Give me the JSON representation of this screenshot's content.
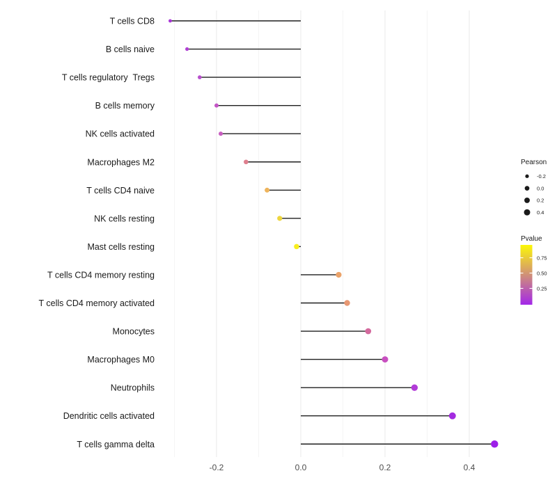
{
  "chart_data": {
    "type": "scatter",
    "subtype": "lollipop",
    "title": "",
    "xlabel": "",
    "ylabel": "",
    "xlim": [
      -0.332,
      0.474
    ],
    "x_major_ticks": [
      -0.2,
      0.0,
      0.2,
      0.4
    ],
    "x_major_tick_labels": [
      "-0.2",
      "0.0",
      "0.2",
      "0.4"
    ],
    "x_minor_ticks": [
      -0.3,
      -0.1,
      0.1,
      0.3
    ],
    "baseline_value": 0,
    "grid": true,
    "categories": [
      "T cells CD8",
      "B cells naive",
      "T cells regulatory  Tregs",
      "B cells memory",
      "NK cells activated",
      "Macrophages M2",
      "T cells CD4 naive",
      "NK cells resting",
      "Mast cells resting",
      "T cells CD4 memory resting",
      "T cells CD4 memory activated",
      "Monocytes",
      "Macrophages M0",
      "Neutrophils",
      "Dendritic cells activated",
      "T cells gamma delta"
    ],
    "points": [
      {
        "label": "T cells CD8",
        "pearson": -0.31,
        "dot_color": "#a935d8"
      },
      {
        "label": "B cells naive",
        "pearson": -0.27,
        "dot_color": "#b040d4"
      },
      {
        "label": "T cells regulatory  Tregs",
        "pearson": -0.24,
        "dot_color": "#b84ecd"
      },
      {
        "label": "B cells memory",
        "pearson": -0.2,
        "dot_color": "#c355c5"
      },
      {
        "label": "NK cells activated",
        "pearson": -0.19,
        "dot_color": "#c75ec0"
      },
      {
        "label": "Macrophages M2",
        "pearson": -0.13,
        "dot_color": "#df7f8e"
      },
      {
        "label": "T cells CD4 naive",
        "pearson": -0.08,
        "dot_color": "#eeb45c"
      },
      {
        "label": "NK cells resting",
        "pearson": -0.05,
        "dot_color": "#eed63e"
      },
      {
        "label": "Mast cells resting",
        "pearson": -0.01,
        "dot_color": "#f8ee1f"
      },
      {
        "label": "T cells CD4 memory resting",
        "pearson": 0.09,
        "dot_color": "#eba36a"
      },
      {
        "label": "T cells CD4 memory activated",
        "pearson": 0.11,
        "dot_color": "#e89873"
      },
      {
        "label": "Monocytes",
        "pearson": 0.16,
        "dot_color": "#d46a9e"
      },
      {
        "label": "Macrophages M0",
        "pearson": 0.2,
        "dot_color": "#c84fc0"
      },
      {
        "label": "Neutrophils",
        "pearson": 0.27,
        "dot_color": "#b23bd8"
      },
      {
        "label": "Dendritic cells activated",
        "pearson": 0.36,
        "dot_color": "#a32be0"
      },
      {
        "label": "T cells gamma delta",
        "pearson": 0.46,
        "dot_color": "#9d1fe8"
      }
    ]
  },
  "legend": {
    "size_legend": {
      "title": "Pearson",
      "entries": [
        {
          "label": "-0.2",
          "value": -0.2
        },
        {
          "label": "0.0",
          "value": 0.0
        },
        {
          "label": "0.2",
          "value": 0.2
        },
        {
          "label": "0.4",
          "value": 0.4
        }
      ],
      "swatch_color": "#1a1a1a"
    },
    "color_legend": {
      "title": "Pvalue",
      "tick_labels": [
        "0.75",
        "0.50",
        "0.25"
      ],
      "gradient_stops": [
        "#fcf807",
        "#e6c440",
        "#d09078",
        "#b95bb0",
        "#a327e9"
      ]
    }
  },
  "colors": {
    "background": "#ffffff",
    "grid_major": "#e9e9e9",
    "grid_minor": "#f4f4f4",
    "stem": "#1f1f1f",
    "category_text": "#1a1a1a",
    "axis_text": "#4d4d4d",
    "legend_text": "#1a1a1a"
  }
}
